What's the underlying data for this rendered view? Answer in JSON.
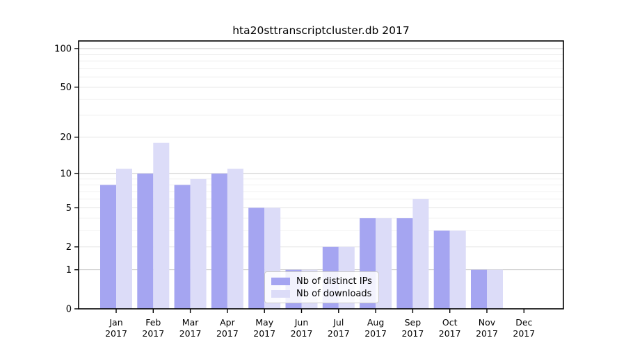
{
  "chart_data": {
    "type": "bar",
    "title": "hta20sttranscriptcluster.db 2017",
    "categories": [
      "Jan 2017",
      "Feb 2017",
      "Mar 2017",
      "Apr 2017",
      "May 2017",
      "Jun 2017",
      "Jul 2017",
      "Aug 2017",
      "Sep 2017",
      "Oct 2017",
      "Nov 2017",
      "Dec 2017"
    ],
    "series": [
      {
        "name": "Nb of distinct IPs",
        "color": "#a5a5f1",
        "values": [
          8,
          10,
          8,
          10,
          5,
          1,
          2,
          4,
          4,
          3,
          1,
          0
        ]
      },
      {
        "name": "Nb of downloads",
        "color": "#dcdcf8",
        "values": [
          11,
          18,
          9,
          11,
          5,
          1,
          2,
          4,
          6,
          3,
          1,
          0
        ]
      }
    ],
    "xlabel": "",
    "ylabel": "",
    "yscale": "log1p",
    "yticks": [
      0,
      1,
      2,
      5,
      10,
      20,
      50,
      100
    ],
    "minor_yticks": [
      3,
      4,
      6,
      7,
      8,
      9,
      30,
      40,
      60,
      70,
      80,
      90
    ],
    "ylim": [
      0,
      113
    ],
    "grid": true,
    "legend_position": "lower center"
  },
  "colors": {
    "background": "#ffffff",
    "grid_major": "#c8c8c8",
    "grid_mid": "#e3e3e3",
    "grid_minor": "#f2f2f2",
    "axis": "#000000",
    "legend_border": "#cccccc"
  }
}
